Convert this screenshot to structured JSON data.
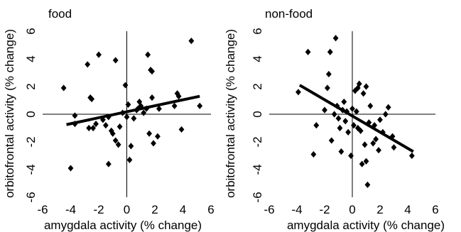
{
  "chart_data": [
    {
      "type": "scatter",
      "title": "food",
      "xlabel": "amygdala activity (% change)",
      "ylabel": "orbitofrontal activity (% change)",
      "xlim": [
        -6,
        6
      ],
      "ylim": [
        -6,
        6
      ],
      "xticks": [
        "-6",
        "-4",
        "-2",
        "0",
        "2",
        "4",
        "6"
      ],
      "yticks": [
        "-6",
        "-4",
        "-2",
        "0",
        "2",
        "4",
        "6"
      ],
      "fit_line": {
        "x": [
          -4.3,
          5.2
        ],
        "y": [
          -0.75,
          1.3
        ]
      },
      "points": [
        {
          "x": -4.5,
          "y": 1.9
        },
        {
          "x": -4.0,
          "y": -3.9
        },
        {
          "x": -3.7,
          "y": -0.1
        },
        {
          "x": -3.7,
          "y": -0.7
        },
        {
          "x": -2.8,
          "y": 3.6
        },
        {
          "x": -2.6,
          "y": 1.2
        },
        {
          "x": -2.5,
          "y": 1.1
        },
        {
          "x": -2.7,
          "y": -1.0
        },
        {
          "x": -2.4,
          "y": -1.0
        },
        {
          "x": -2.2,
          "y": -0.7
        },
        {
          "x": -2.0,
          "y": 4.3
        },
        {
          "x": -1.7,
          "y": -0.4
        },
        {
          "x": -1.5,
          "y": -0.8
        },
        {
          "x": -1.3,
          "y": -0.2
        },
        {
          "x": -1.1,
          "y": -1.2
        },
        {
          "x": -1.0,
          "y": -1.4
        },
        {
          "x": -0.8,
          "y": 3.9
        },
        {
          "x": -0.8,
          "y": -1.9
        },
        {
          "x": -0.6,
          "y": -2.2
        },
        {
          "x": -0.5,
          "y": -0.9
        },
        {
          "x": -0.3,
          "y": 0.1
        },
        {
          "x": -0.1,
          "y": 2.1
        },
        {
          "x": 0.0,
          "y": -0.2
        },
        {
          "x": 0.1,
          "y": 0.7
        },
        {
          "x": 0.2,
          "y": -3.3
        },
        {
          "x": 0.3,
          "y": -2.3
        },
        {
          "x": 0.5,
          "y": -0.3
        },
        {
          "x": -1.3,
          "y": -3.6
        },
        {
          "x": 0.7,
          "y": 0.3
        },
        {
          "x": 0.9,
          "y": 0.9
        },
        {
          "x": 1.0,
          "y": 0.6
        },
        {
          "x": 1.2,
          "y": 0.1
        },
        {
          "x": 1.4,
          "y": 0.4
        },
        {
          "x": 1.5,
          "y": 4.3
        },
        {
          "x": 1.6,
          "y": -1.4
        },
        {
          "x": 1.7,
          "y": 3.2
        },
        {
          "x": 1.8,
          "y": 3.1
        },
        {
          "x": 1.8,
          "y": 1.2
        },
        {
          "x": 1.9,
          "y": -2.1
        },
        {
          "x": 2.2,
          "y": -1.6
        },
        {
          "x": 2.3,
          "y": 0.4
        },
        {
          "x": 3.4,
          "y": 0.6
        },
        {
          "x": 3.6,
          "y": 1.5
        },
        {
          "x": 3.7,
          "y": 1.3
        },
        {
          "x": 3.9,
          "y": -1.1
        },
        {
          "x": 4.6,
          "y": 5.3
        },
        {
          "x": 5.2,
          "y": 0.6
        },
        {
          "x": 0.8,
          "y": 0.4
        }
      ]
    },
    {
      "type": "scatter",
      "title": "non-food",
      "xlabel": "amygdala activity (% change)",
      "ylabel": "orbitofrontal activity (% change)",
      "xlim": [
        -6,
        6
      ],
      "ylim": [
        -6,
        6
      ],
      "xticks": [
        "-6",
        "-4",
        "-2",
        "0",
        "2",
        "4",
        "6"
      ],
      "yticks": [
        "-6",
        "-4",
        "-2",
        "0",
        "2",
        "4",
        "6"
      ],
      "fit_line": {
        "x": [
          -3.8,
          4.4
        ],
        "y": [
          2.1,
          -2.7
        ]
      },
      "points": [
        {
          "x": -3.9,
          "y": 1.6
        },
        {
          "x": -3.2,
          "y": 4.5
        },
        {
          "x": -2.8,
          "y": -2.9
        },
        {
          "x": -2.6,
          "y": -0.8
        },
        {
          "x": -2.0,
          "y": 0.3
        },
        {
          "x": -1.8,
          "y": 1.9
        },
        {
          "x": -1.7,
          "y": 2.9
        },
        {
          "x": -1.6,
          "y": 4.5
        },
        {
          "x": -1.5,
          "y": -1.9
        },
        {
          "x": -1.3,
          "y": 0.0
        },
        {
          "x": -1.2,
          "y": 5.5
        },
        {
          "x": -1.1,
          "y": 0.6
        },
        {
          "x": -1.0,
          "y": -0.3
        },
        {
          "x": -0.9,
          "y": -1.0
        },
        {
          "x": -0.8,
          "y": -2.7
        },
        {
          "x": -0.7,
          "y": 0.3
        },
        {
          "x": -0.6,
          "y": 0.9
        },
        {
          "x": -0.5,
          "y": -0.5
        },
        {
          "x": -0.4,
          "y": 0.2
        },
        {
          "x": -0.3,
          "y": -1.3
        },
        {
          "x": -0.1,
          "y": -3.0
        },
        {
          "x": 0.0,
          "y": 0.4
        },
        {
          "x": 0.1,
          "y": -0.8
        },
        {
          "x": 0.2,
          "y": 1.7
        },
        {
          "x": 0.3,
          "y": 0.2
        },
        {
          "x": 0.4,
          "y": 1.9
        },
        {
          "x": 0.5,
          "y": 2.2
        },
        {
          "x": 0.6,
          "y": -1.2
        },
        {
          "x": 0.7,
          "y": -3.6
        },
        {
          "x": 0.8,
          "y": 1.5
        },
        {
          "x": 0.9,
          "y": -2.2
        },
        {
          "x": 1.0,
          "y": 2.0
        },
        {
          "x": 1.0,
          "y": -3.4
        },
        {
          "x": 1.1,
          "y": -5.1
        },
        {
          "x": 1.2,
          "y": -0.6
        },
        {
          "x": 1.3,
          "y": 0.6
        },
        {
          "x": 1.5,
          "y": -2.1
        },
        {
          "x": 1.6,
          "y": -0.8
        },
        {
          "x": 1.7,
          "y": -1.8
        },
        {
          "x": 1.9,
          "y": -2.6
        },
        {
          "x": 2.0,
          "y": -0.4
        },
        {
          "x": 2.2,
          "y": -1.3
        },
        {
          "x": 2.4,
          "y": 0.0
        },
        {
          "x": 2.6,
          "y": 0.5
        },
        {
          "x": 2.9,
          "y": -1.6
        },
        {
          "x": 3.0,
          "y": -2.4
        },
        {
          "x": 4.3,
          "y": -3.0
        },
        {
          "x": 0.4,
          "y": -1.0
        }
      ]
    }
  ]
}
